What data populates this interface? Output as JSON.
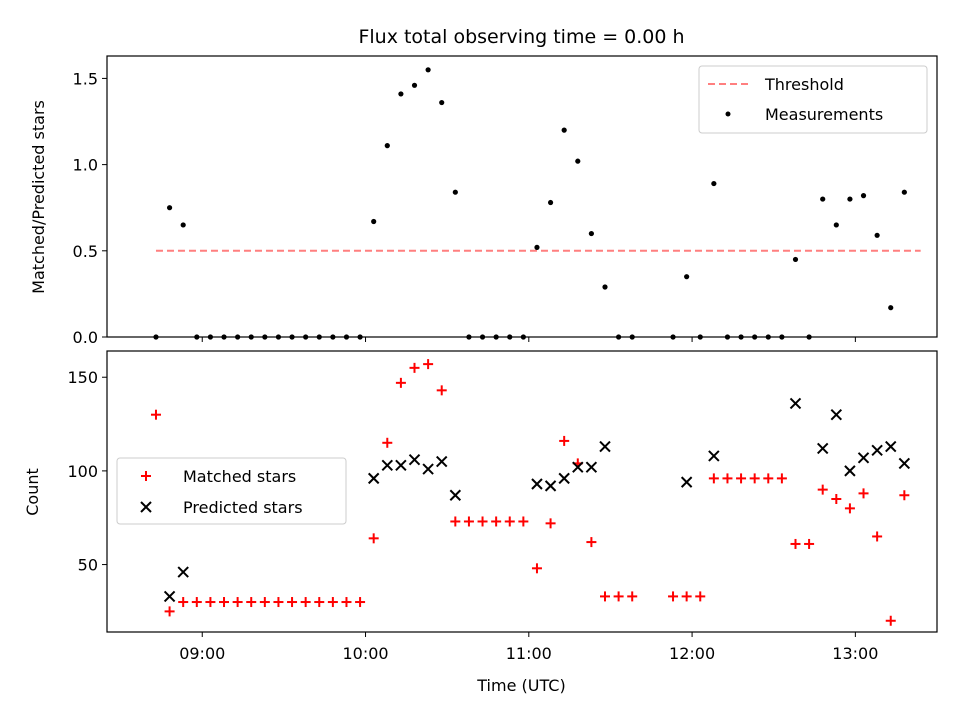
{
  "chart_data": {
    "title": "Flux total observing time = 0.00 h",
    "xlabel": "Time (UTC)",
    "x_range": [
      "08:25",
      "13:30"
    ],
    "x_ticks": [
      "09:00",
      "10:00",
      "11:00",
      "12:00",
      "13:00"
    ],
    "shared_x": true,
    "panels": [
      {
        "type": "scatter",
        "ylabel": "Matched/Predicted stars",
        "ylim": [
          0,
          1.63
        ],
        "yticks": [
          "0.0",
          "0.5",
          "1.0",
          "1.5"
        ],
        "legend_position": "upper right",
        "series": [
          {
            "name": "Threshold",
            "kind": "dashed-line",
            "color": "#ff7f7f",
            "points": [
              [
                "08:43",
                0.5
              ],
              [
                "13:24",
                0.5
              ]
            ]
          },
          {
            "name": "Measurements",
            "kind": "dot",
            "color": "#000000",
            "points": [
              [
                "08:43",
                0.0
              ],
              [
                "08:48",
                0.75
              ],
              [
                "08:53",
                0.65
              ],
              [
                "08:58",
                0.0
              ],
              [
                "09:03",
                0.0
              ],
              [
                "09:08",
                0.0
              ],
              [
                "09:13",
                0.0
              ],
              [
                "09:18",
                0.0
              ],
              [
                "09:23",
                0.0
              ],
              [
                "09:28",
                0.0
              ],
              [
                "09:33",
                0.0
              ],
              [
                "09:38",
                0.0
              ],
              [
                "09:43",
                0.0
              ],
              [
                "09:48",
                0.0
              ],
              [
                "09:53",
                0.0
              ],
              [
                "09:58",
                0.0
              ],
              [
                "10:03",
                0.67
              ],
              [
                "10:08",
                1.11
              ],
              [
                "10:13",
                1.41
              ],
              [
                "10:18",
                1.46
              ],
              [
                "10:23",
                1.55
              ],
              [
                "10:28",
                1.36
              ],
              [
                "10:33",
                0.84
              ],
              [
                "10:38",
                0.0
              ],
              [
                "10:43",
                0.0
              ],
              [
                "10:48",
                0.0
              ],
              [
                "10:53",
                0.0
              ],
              [
                "10:58",
                0.0
              ],
              [
                "11:03",
                0.52
              ],
              [
                "11:08",
                0.78
              ],
              [
                "11:13",
                1.2
              ],
              [
                "11:18",
                1.02
              ],
              [
                "11:23",
                0.6
              ],
              [
                "11:28",
                0.29
              ],
              [
                "11:33",
                0.0
              ],
              [
                "11:38",
                0.0
              ],
              [
                "11:53",
                0.0
              ],
              [
                "11:58",
                0.35
              ],
              [
                "12:03",
                0.0
              ],
              [
                "12:08",
                0.89
              ],
              [
                "12:13",
                0.0
              ],
              [
                "12:18",
                0.0
              ],
              [
                "12:23",
                0.0
              ],
              [
                "12:28",
                0.0
              ],
              [
                "12:33",
                0.0
              ],
              [
                "12:38",
                0.45
              ],
              [
                "12:43",
                0.0
              ],
              [
                "12:48",
                0.8
              ],
              [
                "12:53",
                0.65
              ],
              [
                "12:58",
                0.8
              ],
              [
                "13:03",
                0.82
              ],
              [
                "13:08",
                0.59
              ],
              [
                "13:13",
                0.17
              ],
              [
                "13:18",
                0.84
              ]
            ]
          }
        ]
      },
      {
        "type": "scatter",
        "ylabel": "Count",
        "ylim": [
          14,
          164
        ],
        "yticks": [
          "50",
          "100",
          "150"
        ],
        "legend_position": "center left",
        "series": [
          {
            "name": "Matched stars",
            "kind": "plus",
            "color": "#ff0000",
            "points": [
              [
                "08:43",
                130
              ],
              [
                "08:48",
                25
              ],
              [
                "08:53",
                30
              ],
              [
                "08:58",
                30
              ],
              [
                "09:03",
                30
              ],
              [
                "09:08",
                30
              ],
              [
                "09:13",
                30
              ],
              [
                "09:18",
                30
              ],
              [
                "09:23",
                30
              ],
              [
                "09:28",
                30
              ],
              [
                "09:33",
                30
              ],
              [
                "09:38",
                30
              ],
              [
                "09:43",
                30
              ],
              [
                "09:48",
                30
              ],
              [
                "09:53",
                30
              ],
              [
                "09:58",
                30
              ],
              [
                "10:03",
                64
              ],
              [
                "10:08",
                115
              ],
              [
                "10:13",
                147
              ],
              [
                "10:18",
                155
              ],
              [
                "10:23",
                157
              ],
              [
                "10:28",
                143
              ],
              [
                "10:33",
                73
              ],
              [
                "10:38",
                73
              ],
              [
                "10:43",
                73
              ],
              [
                "10:48",
                73
              ],
              [
                "10:53",
                73
              ],
              [
                "10:58",
                73
              ],
              [
                "11:03",
                48
              ],
              [
                "11:08",
                72
              ],
              [
                "11:13",
                116
              ],
              [
                "11:18",
                104
              ],
              [
                "11:23",
                62
              ],
              [
                "11:28",
                33
              ],
              [
                "11:33",
                33
              ],
              [
                "11:38",
                33
              ],
              [
                "11:53",
                33
              ],
              [
                "11:58",
                33
              ],
              [
                "12:03",
                33
              ],
              [
                "12:08",
                96
              ],
              [
                "12:13",
                96
              ],
              [
                "12:18",
                96
              ],
              [
                "12:23",
                96
              ],
              [
                "12:28",
                96
              ],
              [
                "12:33",
                96
              ],
              [
                "12:38",
                61
              ],
              [
                "12:43",
                61
              ],
              [
                "12:48",
                90
              ],
              [
                "12:53",
                85
              ],
              [
                "12:58",
                80
              ],
              [
                "13:03",
                88
              ],
              [
                "13:08",
                65
              ],
              [
                "13:13",
                20
              ],
              [
                "13:18",
                87
              ]
            ]
          },
          {
            "name": "Predicted stars",
            "kind": "x",
            "color": "#000000",
            "points": [
              [
                "08:48",
                33
              ],
              [
                "08:53",
                46
              ],
              [
                "10:03",
                96
              ],
              [
                "10:08",
                103
              ],
              [
                "10:13",
                103
              ],
              [
                "10:18",
                106
              ],
              [
                "10:23",
                101
              ],
              [
                "10:28",
                105
              ],
              [
                "10:33",
                87
              ],
              [
                "11:03",
                93
              ],
              [
                "11:08",
                92
              ],
              [
                "11:13",
                96
              ],
              [
                "11:18",
                102
              ],
              [
                "11:23",
                102
              ],
              [
                "11:28",
                113
              ],
              [
                "11:58",
                94
              ],
              [
                "12:08",
                108
              ],
              [
                "12:38",
                136
              ],
              [
                "12:48",
                112
              ],
              [
                "12:53",
                130
              ],
              [
                "12:58",
                100
              ],
              [
                "13:03",
                107
              ],
              [
                "13:08",
                111
              ],
              [
                "13:13",
                113
              ],
              [
                "13:18",
                104
              ]
            ]
          }
        ]
      }
    ]
  }
}
